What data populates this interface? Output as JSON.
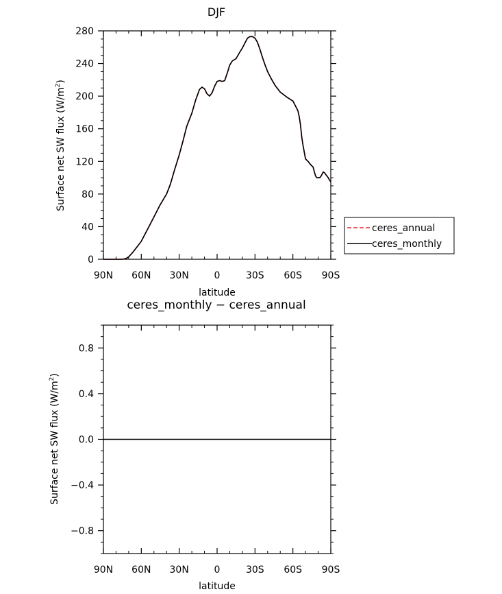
{
  "chart_data": [
    {
      "type": "line",
      "title": "DJF",
      "xlabel": "latitude",
      "ylabel": "Surface net SW flux (W/m²)",
      "ylabel_main": "Surface net SW flux (W/m",
      "ylabel_sup": "2",
      "ylabel_close": ")",
      "xlim": [
        90,
        -90
      ],
      "ylim": [
        0,
        280
      ],
      "xticks": [
        {
          "value": 90,
          "label": "90N"
        },
        {
          "value": 60,
          "label": "60N"
        },
        {
          "value": 30,
          "label": "30N"
        },
        {
          "value": 0,
          "label": "0"
        },
        {
          "value": -30,
          "label": "30S"
        },
        {
          "value": -60,
          "label": "60S"
        },
        {
          "value": -90,
          "label": "90S"
        }
      ],
      "yticks": [
        {
          "value": 0,
          "label": "0"
        },
        {
          "value": 40,
          "label": "40"
        },
        {
          "value": 80,
          "label": "80"
        },
        {
          "value": 120,
          "label": "120"
        },
        {
          "value": 160,
          "label": "160"
        },
        {
          "value": 200,
          "label": "200"
        },
        {
          "value": 240,
          "label": "240"
        },
        {
          "value": 280,
          "label": "280"
        }
      ],
      "legend": {
        "placement": "right",
        "entries": [
          {
            "name": "ceres_annual",
            "color": "#e8262c",
            "dash": true
          },
          {
            "name": "ceres_monthly",
            "color": "#000000",
            "dash": false
          }
        ]
      },
      "series": [
        {
          "name": "ceres_annual",
          "color": "#d4201f",
          "x": [
            90,
            80,
            75,
            72,
            70,
            67,
            64,
            60,
            55,
            50,
            45,
            40,
            37,
            34,
            30,
            27,
            24,
            20,
            17,
            14,
            12,
            10,
            8,
            6,
            4,
            2,
            0,
            -2,
            -4,
            -6,
            -8,
            -10,
            -12,
            -15,
            -18,
            -20,
            -22,
            -24,
            -26,
            -28,
            -30,
            -32,
            -34,
            -36,
            -38,
            -40,
            -43,
            -46,
            -50,
            -55,
            -60,
            -62,
            -64,
            -65,
            -66,
            -67,
            -68,
            -70,
            -72,
            -74,
            -76,
            -77,
            -78,
            -79,
            -80,
            -81,
            -82,
            -83,
            -84,
            -85,
            -86,
            -87,
            -88,
            -89,
            -90
          ],
          "values": [
            0,
            0,
            0,
            1,
            3,
            8,
            14,
            22,
            37,
            52,
            67,
            80,
            92,
            108,
            128,
            145,
            163,
            179,
            195,
            208,
            211,
            209,
            203,
            200,
            204,
            212,
            218,
            219,
            218,
            219,
            228,
            238,
            243,
            246,
            254,
            259,
            265,
            271,
            273,
            273,
            271,
            266,
            257,
            247,
            238,
            230,
            221,
            213,
            205,
            199,
            194,
            188,
            182,
            175,
            165,
            150,
            140,
            123,
            120,
            116,
            113,
            107,
            102,
            100,
            100,
            100,
            101,
            104,
            107,
            106,
            104,
            102,
            100,
            97,
            95
          ]
        },
        {
          "name": "ceres_monthly",
          "color": "#000000",
          "x": [
            90,
            80,
            75,
            72,
            70,
            67,
            64,
            60,
            55,
            50,
            45,
            40,
            37,
            34,
            30,
            27,
            24,
            20,
            17,
            14,
            12,
            10,
            8,
            6,
            4,
            2,
            0,
            -2,
            -4,
            -6,
            -8,
            -10,
            -12,
            -15,
            -18,
            -20,
            -22,
            -24,
            -26,
            -28,
            -30,
            -32,
            -34,
            -36,
            -38,
            -40,
            -43,
            -46,
            -50,
            -55,
            -60,
            -62,
            -64,
            -65,
            -66,
            -67,
            -68,
            -70,
            -72,
            -74,
            -76,
            -77,
            -78,
            -79,
            -80,
            -81,
            -82,
            -83,
            -84,
            -85,
            -86,
            -87,
            -88,
            -89,
            -90
          ],
          "values": [
            0,
            0,
            0,
            1,
            3,
            8,
            14,
            22,
            37,
            52,
            67,
            80,
            92,
            108,
            128,
            145,
            163,
            179,
            195,
            208,
            211,
            209,
            203,
            200,
            204,
            212,
            218,
            219,
            218,
            219,
            228,
            238,
            243,
            246,
            254,
            259,
            265,
            271,
            273,
            273,
            271,
            266,
            257,
            247,
            238,
            230,
            221,
            213,
            205,
            199,
            194,
            188,
            182,
            175,
            165,
            150,
            140,
            123,
            120,
            116,
            113,
            107,
            102,
            100,
            100,
            100,
            101,
            104,
            107,
            106,
            104,
            102,
            100,
            97,
            95
          ]
        }
      ]
    },
    {
      "type": "line",
      "title": "ceres_monthly − ceres_annual",
      "xlabel": "latitude",
      "ylabel": "Surface net SW flux (W/m²)",
      "ylabel_main": "Surface net SW flux (W/m",
      "ylabel_sup": "2",
      "ylabel_close": ")",
      "xlim": [
        90,
        -90
      ],
      "ylim": [
        -1,
        1
      ],
      "xticks": [
        {
          "value": 90,
          "label": "90N"
        },
        {
          "value": 60,
          "label": "60N"
        },
        {
          "value": 30,
          "label": "30N"
        },
        {
          "value": 0,
          "label": "0"
        },
        {
          "value": -30,
          "label": "30S"
        },
        {
          "value": -60,
          "label": "60S"
        },
        {
          "value": -90,
          "label": "90S"
        }
      ],
      "yticks": [
        {
          "value": -0.8,
          "label": "−0.8"
        },
        {
          "value": -0.4,
          "label": "−0.4"
        },
        {
          "value": 0,
          "label": "0.0"
        },
        {
          "value": 0.4,
          "label": "0.4"
        },
        {
          "value": 0.8,
          "label": "0.8"
        }
      ],
      "series": [
        {
          "name": "difference",
          "color": "#000000",
          "x": [
            90,
            -90
          ],
          "values": [
            0,
            0
          ]
        }
      ]
    }
  ]
}
